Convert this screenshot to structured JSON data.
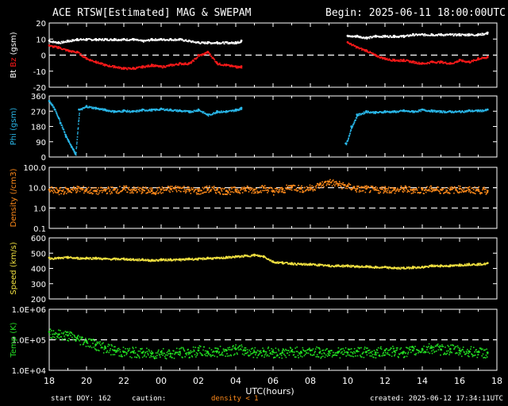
{
  "title": "ACE RTSW[Estimated] MAG & SWEPAM",
  "begin": "Begin: 2025-06-11 18:00:00UTC",
  "xlabel": "UTC(hours)",
  "footer": {
    "start_doy": "start DOY: 162",
    "caution": "caution:",
    "density_note": "density < 1",
    "created": "created: 2025-06-12 17:34:11UTC"
  },
  "colors": {
    "bt": "#ffffff",
    "bz": "#ff1a1a",
    "phi": "#2ab8ea",
    "density": "#ff8a1a",
    "speed": "#f0e040",
    "temp": "#22dd22",
    "frame": "#ffffff",
    "dash": "#ffffff"
  },
  "chart_data": [
    {
      "type": "scatter",
      "panel": "mag",
      "ylabel_parts": [
        "Bt",
        "Bz",
        "(gsm)"
      ],
      "ylim": [
        -20,
        20
      ],
      "yticks": [
        "20",
        "10",
        "0",
        "-10",
        "-20"
      ],
      "ytick_values": [
        20,
        10,
        0,
        -10,
        -20
      ],
      "dashed_at": [
        0
      ],
      "x_ticks": [
        "18",
        "20",
        "22",
        "00",
        "02",
        "04",
        "06",
        "08",
        "10",
        "12",
        "14",
        "16",
        "18"
      ],
      "series": [
        {
          "name": "Bt",
          "color": "bt",
          "x": [
            18.0,
            18.5,
            19.0,
            19.5,
            20.0,
            20.5,
            21.0,
            21.5,
            22.0,
            22.5,
            23.0,
            23.5,
            24.0,
            24.5,
            25.0,
            25.5,
            26.0,
            26.5,
            27.0,
            27.5,
            28.0,
            28.3,
            34.0,
            34.5,
            35.0,
            35.5,
            36.0,
            36.5,
            37.0,
            37.5,
            38.0,
            38.5,
            39.0,
            39.5,
            40.0,
            40.5,
            41.0,
            41.5
          ],
          "y": [
            9,
            8,
            9,
            10,
            10,
            10,
            10,
            10,
            10,
            10,
            9,
            10,
            10,
            10,
            10,
            9,
            8,
            8,
            8,
            8,
            8,
            9,
            12,
            12,
            11,
            12,
            12,
            12,
            12,
            13,
            13,
            13,
            13,
            13,
            13,
            13,
            13,
            14
          ]
        },
        {
          "name": "Bz",
          "color": "bz",
          "x": [
            18.0,
            18.5,
            19.0,
            19.5,
            20.0,
            20.5,
            21.0,
            21.5,
            22.0,
            22.5,
            23.0,
            23.5,
            24.0,
            24.5,
            25.0,
            25.5,
            26.0,
            26.5,
            27.0,
            27.5,
            28.0,
            28.3,
            34.0,
            34.5,
            35.0,
            35.5,
            36.0,
            36.5,
            37.0,
            37.5,
            38.0,
            38.5,
            39.0,
            39.5,
            40.0,
            40.5,
            41.0,
            41.5
          ],
          "y": [
            6,
            5,
            3,
            2,
            -2,
            -4,
            -6,
            -7,
            -8,
            -8,
            -7,
            -6,
            -7,
            -6,
            -5,
            -5,
            0,
            2,
            -5,
            -6,
            -7,
            -7,
            8,
            5,
            3,
            0,
            -2,
            -3,
            -3,
            -4,
            -5,
            -4,
            -4,
            -5,
            -3,
            -4,
            -2,
            -1
          ]
        }
      ]
    },
    {
      "type": "scatter",
      "panel": "phi",
      "ylabel_parts": [
        "Phi",
        "(gsm)"
      ],
      "ylim": [
        0,
        360
      ],
      "yticks": [
        "360",
        "270",
        "180",
        "90",
        "0"
      ],
      "ytick_values": [
        360,
        270,
        180,
        90,
        0
      ],
      "dashed_at": [],
      "series": [
        {
          "name": "Phi",
          "color": "phi",
          "x": [
            18.0,
            18.3,
            18.6,
            18.9,
            19.2,
            19.4,
            19.6,
            20.0,
            20.5,
            21.0,
            21.5,
            22.0,
            22.5,
            23.0,
            23.5,
            24.0,
            24.5,
            25.0,
            25.5,
            26.0,
            26.5,
            27.0,
            27.5,
            28.0,
            28.3,
            33.9,
            34.2,
            34.5,
            35.0,
            35.5,
            36.0,
            36.5,
            37.0,
            37.5,
            38.0,
            38.5,
            39.0,
            39.5,
            40.0,
            40.5,
            41.0,
            41.5
          ],
          "y": [
            330,
            280,
            200,
            120,
            60,
            20,
            280,
            300,
            290,
            280,
            270,
            275,
            270,
            280,
            280,
            285,
            280,
            275,
            270,
            280,
            250,
            270,
            270,
            280,
            290,
            80,
            180,
            250,
            270,
            265,
            270,
            270,
            275,
            270,
            280,
            275,
            270,
            270,
            270,
            275,
            275,
            280
          ]
        }
      ]
    },
    {
      "type": "scatter",
      "panel": "density",
      "ylabel_parts": [
        "Density",
        "(/cm3)"
      ],
      "ylim": [
        0.1,
        100
      ],
      "log": true,
      "yticks": [
        "100.0",
        "10.0",
        "1.0",
        "0.1"
      ],
      "ytick_values": [
        100,
        10,
        1,
        0.1
      ],
      "dashed_at": [
        10,
        1
      ],
      "series": [
        {
          "name": "Density",
          "color": "density",
          "x": [
            18.0,
            18.5,
            19.0,
            19.5,
            20.0,
            20.5,
            21.0,
            21.5,
            22.0,
            22.5,
            23.0,
            23.5,
            24.0,
            24.5,
            25.0,
            25.5,
            26.0,
            26.5,
            27.0,
            27.5,
            28.0,
            28.5,
            29.0,
            29.5,
            30.0,
            30.5,
            31.0,
            31.5,
            32.0,
            32.5,
            33.0,
            33.5,
            34.0,
            34.5,
            35.0,
            35.5,
            36.0,
            36.5,
            37.0,
            37.5,
            38.0,
            38.5,
            39.0,
            39.5,
            40.0,
            40.5,
            41.0,
            41.5
          ],
          "y": [
            8,
            7,
            8,
            9,
            8,
            7,
            8,
            8,
            9,
            8,
            8,
            7,
            8,
            9,
            10,
            8,
            7,
            9,
            8,
            7,
            8,
            9,
            8,
            10,
            7,
            8,
            12,
            9,
            10,
            14,
            20,
            15,
            12,
            9,
            9,
            8,
            9,
            8,
            9,
            8,
            8,
            9,
            8,
            8,
            9,
            8,
            8,
            7
          ]
        }
      ]
    },
    {
      "type": "scatter",
      "panel": "speed",
      "ylabel_parts": [
        "Speed",
        "(km/s)"
      ],
      "ylim": [
        200,
        600
      ],
      "yticks": [
        "600",
        "500",
        "400",
        "300",
        "200"
      ],
      "ytick_values": [
        600,
        500,
        400,
        300,
        200
      ],
      "dashed_at": [],
      "series": [
        {
          "name": "Speed",
          "color": "speed",
          "x": [
            18.0,
            18.5,
            19.0,
            19.5,
            20.0,
            20.5,
            21.0,
            21.5,
            22.0,
            22.5,
            23.0,
            23.5,
            24.0,
            24.5,
            25.0,
            25.5,
            26.0,
            26.5,
            27.0,
            27.5,
            28.0,
            28.5,
            29.0,
            29.5,
            30.0,
            30.5,
            31.0,
            31.5,
            32.0,
            32.5,
            33.0,
            33.5,
            34.0,
            34.5,
            35.0,
            35.5,
            36.0,
            36.5,
            37.0,
            37.5,
            38.0,
            38.5,
            39.0,
            39.5,
            40.0,
            40.5,
            41.0,
            41.5
          ],
          "y": [
            470,
            470,
            475,
            470,
            470,
            470,
            465,
            465,
            465,
            460,
            460,
            455,
            460,
            460,
            460,
            465,
            465,
            470,
            470,
            475,
            480,
            485,
            490,
            480,
            445,
            440,
            435,
            430,
            430,
            425,
            420,
            420,
            420,
            415,
            415,
            410,
            410,
            405,
            405,
            410,
            410,
            420,
            420,
            420,
            425,
            430,
            430,
            435
          ]
        }
      ]
    },
    {
      "type": "scatter",
      "panel": "temp",
      "ylabel_parts": [
        "Temp",
        "(K)"
      ],
      "ylim": [
        10000,
        1000000
      ],
      "log": true,
      "yticks": [
        "1.0E+06",
        "1.0E+05",
        "1.0E+04"
      ],
      "ytick_values": [
        1000000,
        100000,
        10000
      ],
      "dashed_at": [
        100000
      ],
      "series": [
        {
          "name": "Temp",
          "color": "temp",
          "x": [
            18.0,
            18.5,
            19.0,
            19.5,
            20.0,
            20.5,
            21.0,
            21.5,
            22.0,
            22.5,
            23.0,
            23.5,
            24.0,
            24.5,
            25.0,
            25.5,
            26.0,
            26.5,
            27.0,
            27.5,
            28.0,
            28.5,
            29.0,
            29.5,
            30.0,
            30.5,
            31.0,
            31.5,
            32.0,
            32.5,
            33.0,
            33.5,
            34.0,
            34.5,
            35.0,
            35.5,
            36.0,
            36.5,
            37.0,
            37.5,
            38.0,
            38.5,
            39.0,
            39.5,
            40.0,
            40.5,
            41.0,
            41.5
          ],
          "y": [
            180000,
            150000,
            140000,
            110000,
            90000,
            70000,
            55000,
            45000,
            40000,
            40000,
            38000,
            35000,
            40000,
            35000,
            40000,
            38000,
            45000,
            40000,
            42000,
            45000,
            50000,
            45000,
            40000,
            42000,
            40000,
            38000,
            42000,
            40000,
            45000,
            38000,
            42000,
            40000,
            38000,
            42000,
            40000,
            38000,
            45000,
            42000,
            40000,
            45000,
            50000,
            55000,
            48000,
            50000,
            45000,
            42000,
            40000,
            38000
          ]
        }
      ]
    }
  ]
}
